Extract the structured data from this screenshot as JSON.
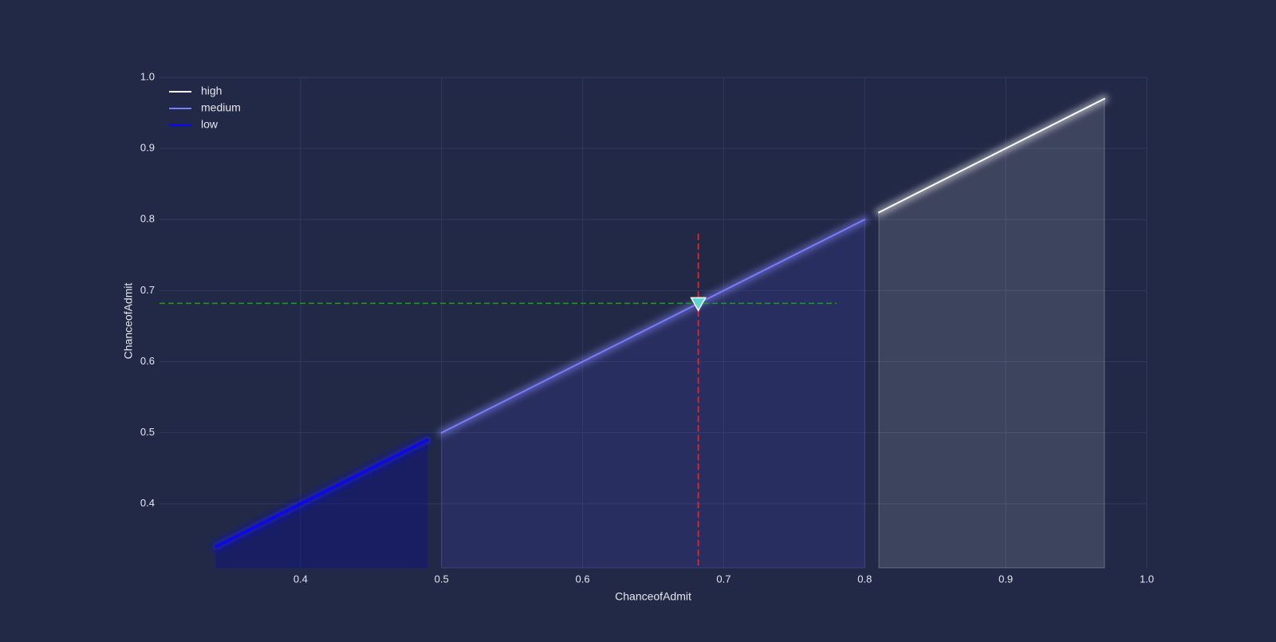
{
  "chart_data": {
    "type": "line",
    "title": "",
    "xlabel": "ChanceofAdmit",
    "ylabel": "ChanceofAdmit",
    "xlim": [
      0.3,
      1.0
    ],
    "ylim": [
      0.31,
      1.0
    ],
    "xticks": [
      0.4,
      0.5,
      0.6,
      0.7,
      0.8,
      0.9,
      1.0
    ],
    "xtick_labels": [
      "0.4",
      "0.5",
      "0.6",
      "0.7",
      "0.8",
      "0.9",
      "1.0"
    ],
    "yticks": [
      0.4,
      0.5,
      0.6,
      0.7,
      0.8,
      0.9,
      1.0
    ],
    "ytick_labels": [
      "0.4",
      "0.5",
      "0.6",
      "0.7",
      "0.8",
      "0.9",
      "1.0"
    ],
    "grid": true,
    "legend_position": "top-left",
    "series": [
      {
        "name": "high",
        "color": "#ffffff",
        "fill_color": "#ffffff",
        "fill_opacity": 0.13,
        "line_width": 2,
        "glow": "#ffffff",
        "x": [
          0.81,
          0.97
        ],
        "y": [
          0.81,
          0.97
        ]
      },
      {
        "name": "medium",
        "color": "#7b7bff",
        "fill_color": "#4a4ad0",
        "fill_opacity": 0.18,
        "line_width": 2,
        "glow": "#8a8aff",
        "x": [
          0.5,
          0.8
        ],
        "y": [
          0.5,
          0.8
        ]
      },
      {
        "name": "low",
        "color": "#0a0ae6",
        "fill_color": "#0b0b9a",
        "fill_opacity": 0.35,
        "line_width": 3.5,
        "glow": "#1010ff",
        "x": [
          0.34,
          0.49
        ],
        "y": [
          0.34,
          0.49
        ]
      }
    ],
    "annotations": {
      "marker": {
        "x": 0.682,
        "y": 0.682,
        "shape": "triangle-down",
        "fill": "#5fd4d4",
        "stroke": "#ffffff"
      },
      "vline": {
        "x": 0.682,
        "y_from": 0.31,
        "y_to": 0.78,
        "color": "#ff1a1a",
        "style": "dashed"
      },
      "hline": {
        "y": 0.682,
        "x_from": 0.3,
        "x_to": 0.78,
        "color": "#1f9d1f",
        "style": "dashed"
      }
    }
  }
}
